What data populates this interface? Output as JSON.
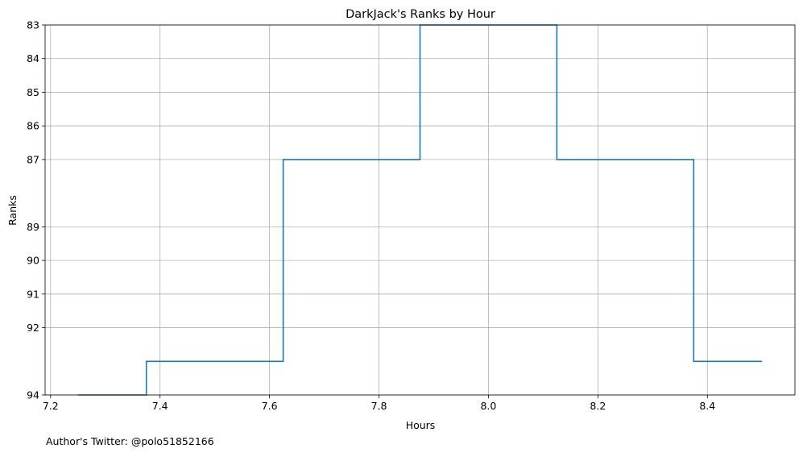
{
  "chart_data": {
    "type": "line",
    "step": "mid",
    "title": "DarkJack's Ranks by Hour",
    "xlabel": "Hours",
    "ylabel": "Ranks",
    "xlim": [
      7.19,
      8.56
    ],
    "ylim": [
      94.0,
      83.0
    ],
    "y_inverted": true,
    "grid": true,
    "x_ticks": [
      "7.2",
      "7.4",
      "7.6",
      "7.8",
      "8.0",
      "8.2",
      "8.4"
    ],
    "y_ticks": [
      "83",
      "84",
      "85",
      "86",
      "87",
      "89",
      "90",
      "91",
      "92",
      "94"
    ],
    "line_color": "#1f77b4",
    "series": [
      {
        "x": [
          7.25,
          7.5,
          7.75,
          8.0,
          8.25,
          8.5
        ],
        "y": [
          94,
          93,
          87,
          83,
          87,
          93
        ]
      }
    ]
  },
  "footnote": "Author's Twitter: @polo51852166"
}
